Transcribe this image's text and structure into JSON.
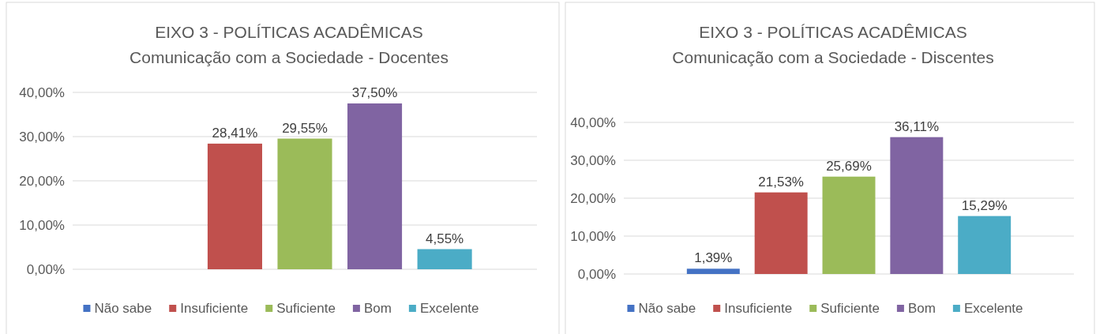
{
  "chart_data": [
    {
      "type": "bar",
      "title": "EIXO 3 - POLÍTICAS ACADÊMICAS",
      "subtitle": "Comunicação com a Sociedade - Docentes",
      "categories": [
        null
      ],
      "ylim": [
        0,
        40
      ],
      "yticks": [
        {
          "value": 0,
          "label": "0,00%"
        },
        {
          "value": 10,
          "label": "10,00%"
        },
        {
          "value": 20,
          "label": "20,00%"
        },
        {
          "value": 30,
          "label": "30,00%"
        },
        {
          "value": 40,
          "label": "40,00%"
        }
      ],
      "grid": "y",
      "legend": "bottom",
      "tick_labels": "y",
      "series": [
        {
          "name": "Não sabe",
          "color": "#4472c4",
          "values": [
            0
          ],
          "value_labels": [
            null
          ]
        },
        {
          "name": "Insuficiente",
          "color": "#c0504d",
          "values": [
            28.41
          ],
          "value_labels": [
            "28,41%"
          ]
        },
        {
          "name": "Suficiente",
          "color": "#9bbb59",
          "values": [
            29.55
          ],
          "value_labels": [
            "29,55%"
          ]
        },
        {
          "name": "Bom",
          "color": "#8064a2",
          "values": [
            37.5
          ],
          "value_labels": [
            "37,50%"
          ]
        },
        {
          "name": "Excelente",
          "color": "#4bacc6",
          "values": [
            4.55
          ],
          "value_labels": [
            "4,55%"
          ]
        }
      ]
    },
    {
      "type": "bar",
      "title": "EIXO 3 - POLÍTICAS ACADÊMICAS",
      "subtitle": "Comunicação com a Sociedade - Discentes",
      "categories": [
        null
      ],
      "ylim": [
        0,
        40
      ],
      "yticks": [
        {
          "value": 0,
          "label": "0,00%"
        },
        {
          "value": 10,
          "label": "10,00%"
        },
        {
          "value": 20,
          "label": "20,00%"
        },
        {
          "value": 30,
          "label": "30,00%"
        },
        {
          "value": 40,
          "label": "40,00%"
        }
      ],
      "grid": "y",
      "legend": "bottom",
      "tick_labels": "y",
      "series": [
        {
          "name": "Não sabe",
          "color": "#4472c4",
          "values": [
            1.39
          ],
          "value_labels": [
            "1,39%"
          ]
        },
        {
          "name": "Insuficiente",
          "color": "#c0504d",
          "values": [
            21.53
          ],
          "value_labels": [
            "21,53%"
          ]
        },
        {
          "name": "Suficiente",
          "color": "#9bbb59",
          "values": [
            25.69
          ],
          "value_labels": [
            "25,69%"
          ]
        },
        {
          "name": "Bom",
          "color": "#8064a2",
          "values": [
            36.11
          ],
          "value_labels": [
            "36,11%"
          ]
        },
        {
          "name": "Excelente",
          "color": "#4bacc6",
          "values": [
            15.29
          ],
          "value_labels": [
            "15,29%"
          ]
        }
      ]
    }
  ]
}
